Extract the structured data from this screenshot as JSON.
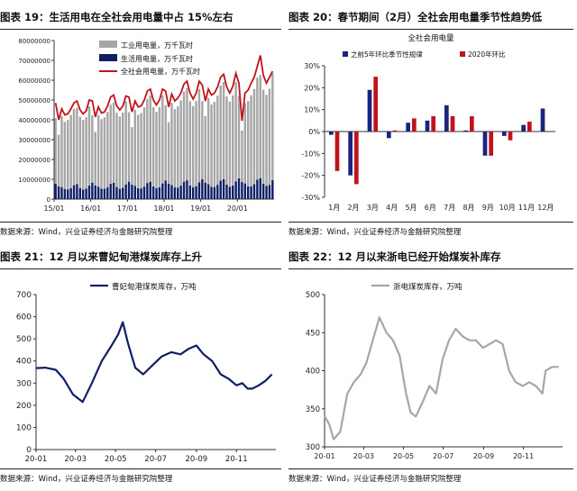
{
  "figures": [
    {
      "id": "fig19",
      "title": "图表 19：生活用电在全社会用电量中占 15%左右",
      "source": "数据来源：Wind，兴业证券经济与金融研究院整理"
    },
    {
      "id": "fig20",
      "title": "图表 20：春节期间（2月）全社会用电量季节性趋势低",
      "source": "数据来源：Wind，兴业证券经济与金融研究院整理"
    },
    {
      "id": "fig21",
      "title": "图表 21：12 月以来曹妃甸港煤炭库存上升",
      "source": "数据来源：Wind，兴业证券经济与金融研究院整理"
    },
    {
      "id": "fig22",
      "title": "图表 22：12 月以来浙电已经开始煤炭补库存",
      "source": "数据来源：Wind，兴业证券经济与金融研究院整理"
    }
  ],
  "chart_data": [
    {
      "id": "fig19",
      "type": "bar",
      "title": "",
      "legend": [
        "工业用电量，万千瓦时",
        "生活用电量，万千瓦时",
        "全社会用电量，万千瓦时"
      ],
      "legend_position": "top-left",
      "x_tick_labels": [
        "15/01",
        "16/01",
        "17/01",
        "18/01",
        "19/01",
        "20/01"
      ],
      "y_tick_labels": [
        "0",
        "10000000",
        "20000000",
        "30000000",
        "40000000",
        "50000000",
        "60000000",
        "70000000",
        "80000000"
      ],
      "ylim": [
        0,
        80000000
      ],
      "start": "2015-01",
      "end": "2020-12",
      "series": [
        {
          "name": "工业用电量，万千瓦时",
          "kind": "bar",
          "color": "#a6a6a6",
          "values": [
            33000000,
            26000000,
            36000000,
            34000000,
            35000000,
            37000000,
            38500000,
            38500000,
            36000000,
            35000000,
            36000000,
            40000000,
            34000000,
            27000000,
            36000000,
            35000000,
            36000000,
            38000000,
            40000000,
            40500000,
            37500000,
            36500000,
            38000000,
            42000000,
            35000000,
            29000000,
            38500000,
            37000000,
            38000000,
            40000000,
            42500000,
            43500000,
            40000000,
            38500000,
            40500000,
            44500000,
            38000000,
            31000000,
            41500000,
            39500000,
            41000000,
            43000000,
            45500000,
            46500000,
            42500000,
            41000000,
            43000000,
            47000000,
            39500000,
            33500000,
            43500000,
            41500000,
            43000000,
            45000000,
            48000000,
            49000000,
            44500000,
            43000000,
            45500000,
            50000000,
            41500000,
            26000000,
            40500000,
            43000000,
            46000000,
            48000000,
            51500000,
            52000000,
            47500000,
            46000000,
            48500000,
            54000000
          ]
        },
        {
          "name": "生活用电量，万千瓦时",
          "kind": "bar",
          "color": "#0f1f66",
          "values": [
            7800000,
            6500000,
            6000000,
            5000000,
            4900000,
            5500000,
            7000000,
            7600000,
            5600000,
            4900000,
            5300000,
            6800000,
            8300000,
            6900000,
            6300000,
            5300000,
            5200000,
            6000000,
            7700000,
            8300000,
            6100000,
            5200000,
            5700000,
            7400000,
            8800000,
            7300000,
            6600000,
            5500000,
            5400000,
            6300000,
            8100000,
            8800000,
            6400000,
            5500000,
            6000000,
            7900000,
            9400000,
            7800000,
            7100000,
            5900000,
            5800000,
            6800000,
            8800000,
            9500000,
            6900000,
            5900000,
            6500000,
            8500000,
            10000000,
            8300000,
            7500000,
            6200000,
            6100000,
            7200000,
            9300000,
            10100000,
            7300000,
            6200000,
            6800000,
            9000000,
            10500000,
            8600000,
            7900000,
            6500000,
            6400000,
            7600000,
            9800000,
            10600000,
            7700000,
            6600000,
            7200000,
            9600000
          ]
        },
        {
          "name": "全社会用电量，万千瓦时",
          "kind": "line",
          "color": "#c0141c",
          "values": [
            48500000,
            40000000,
            45500000,
            42500000,
            43000000,
            45500000,
            48500000,
            49500000,
            45000000,
            43000000,
            44500000,
            50000000,
            49500000,
            41500000,
            46500000,
            43500000,
            44000000,
            47000000,
            51500000,
            52500000,
            47000000,
            45000000,
            47000000,
            52000000,
            51500000,
            44000000,
            49500000,
            46500000,
            47000000,
            50000000,
            54500000,
            55500000,
            50000000,
            47500000,
            50000000,
            55500000,
            54500000,
            46500000,
            53000000,
            49500000,
            51000000,
            53500000,
            58000000,
            59500000,
            53500000,
            50500000,
            53500000,
            59500000,
            57500000,
            49500000,
            55500000,
            52500000,
            53500000,
            56500000,
            61500000,
            63000000,
            56500000,
            53500000,
            57000000,
            63500000,
            58500000,
            39500000,
            53500000,
            55000000,
            58500000,
            61500000,
            67000000,
            72500000,
            62500000,
            58500000,
            61500000,
            64500000
          ]
        }
      ]
    },
    {
      "id": "fig20",
      "type": "bar",
      "title": "全社会用电量",
      "legend": [
        "之前5年环比季节性规律",
        "2020年环比"
      ],
      "legend_position": "top",
      "categories": [
        "1月",
        "2月",
        "3月",
        "4月",
        "5月",
        "6月",
        "7月",
        "8月",
        "9月",
        "10月",
        "11月",
        "12月"
      ],
      "y_tick_labels": [
        "-30%",
        "-20%",
        "-10%",
        "0%",
        "10%",
        "20%",
        "30%"
      ],
      "ylim": [
        -30,
        30
      ],
      "series": [
        {
          "name": "之前5年环比季节性规律",
          "color": "#1a237e",
          "values": [
            -1.5,
            -20,
            19,
            -3,
            4,
            5,
            12,
            0.5,
            -11,
            -2,
            3,
            10.5
          ]
        },
        {
          "name": "2020年环比",
          "color": "#c0141c",
          "values": [
            -18,
            -24,
            25,
            0.5,
            6,
            7,
            7,
            7,
            -11,
            -4,
            4.5,
            null
          ]
        }
      ]
    },
    {
      "id": "fig21",
      "type": "line",
      "title": "",
      "legend": [
        "曹妃甸港煤炭库存，万吨"
      ],
      "legend_position": "top-center",
      "x_tick_labels": [
        "20-01",
        "20-03",
        "20-05",
        "20-07",
        "20-09",
        "20-11"
      ],
      "y_tick_labels": [
        "0",
        "100",
        "200",
        "300",
        "400",
        "500",
        "600",
        "700"
      ],
      "ylim": [
        0,
        700
      ],
      "series": [
        {
          "name": "曹妃甸港煤炭库存，万吨",
          "color": "#0f1f66",
          "x": [
            "2020-01-01",
            "2020-01-15",
            "2020-01-31",
            "2020-02-12",
            "2020-02-26",
            "2020-03-12",
            "2020-03-26",
            "2020-04-10",
            "2020-04-25",
            "2020-05-05",
            "2020-05-12",
            "2020-05-20",
            "2020-05-31",
            "2020-06-12",
            "2020-06-26",
            "2020-07-10",
            "2020-07-25",
            "2020-08-08",
            "2020-08-20",
            "2020-09-01",
            "2020-09-12",
            "2020-09-25",
            "2020-10-08",
            "2020-10-20",
            "2020-11-01",
            "2020-11-10",
            "2020-11-18",
            "2020-11-25",
            "2020-12-05",
            "2020-12-15",
            "2020-12-25"
          ],
          "values": [
            368,
            370,
            360,
            320,
            250,
            215,
            300,
            400,
            470,
            520,
            575,
            480,
            370,
            340,
            380,
            420,
            440,
            430,
            455,
            470,
            430,
            400,
            340,
            320,
            290,
            300,
            275,
            275,
            290,
            310,
            340
          ]
        }
      ]
    },
    {
      "id": "fig22",
      "type": "line",
      "title": "",
      "legend": [
        "浙电煤炭库存，万吨"
      ],
      "legend_position": "top-center",
      "x_tick_labels": [
        "20-01",
        "20-03",
        "20-05",
        "20-07",
        "20-09",
        "20-11"
      ],
      "y_tick_labels": [
        "300",
        "350",
        "400",
        "450",
        "500"
      ],
      "ylim": [
        300,
        500
      ],
      "series": [
        {
          "name": "浙电煤炭库存，万吨",
          "color": "#a6a6a6",
          "x": [
            "2020-01-01",
            "2020-01-08",
            "2020-01-15",
            "2020-01-25",
            "2020-02-05",
            "2020-02-15",
            "2020-02-25",
            "2020-03-05",
            "2020-03-15",
            "2020-03-25",
            "2020-04-05",
            "2020-04-15",
            "2020-04-25",
            "2020-05-05",
            "2020-05-12",
            "2020-05-20",
            "2020-05-31",
            "2020-06-10",
            "2020-06-20",
            "2020-06-30",
            "2020-07-10",
            "2020-07-20",
            "2020-07-31",
            "2020-08-10",
            "2020-08-20",
            "2020-08-31",
            "2020-09-10",
            "2020-09-20",
            "2020-09-30",
            "2020-10-10",
            "2020-10-20",
            "2020-10-31",
            "2020-11-10",
            "2020-11-20",
            "2020-11-30",
            "2020-12-05",
            "2020-12-15",
            "2020-12-25"
          ],
          "values": [
            340,
            330,
            310,
            320,
            370,
            385,
            395,
            410,
            440,
            470,
            450,
            440,
            420,
            370,
            345,
            340,
            360,
            380,
            370,
            415,
            440,
            455,
            445,
            440,
            440,
            430,
            435,
            440,
            435,
            400,
            385,
            380,
            385,
            380,
            370,
            400,
            405,
            405
          ]
        }
      ]
    }
  ]
}
